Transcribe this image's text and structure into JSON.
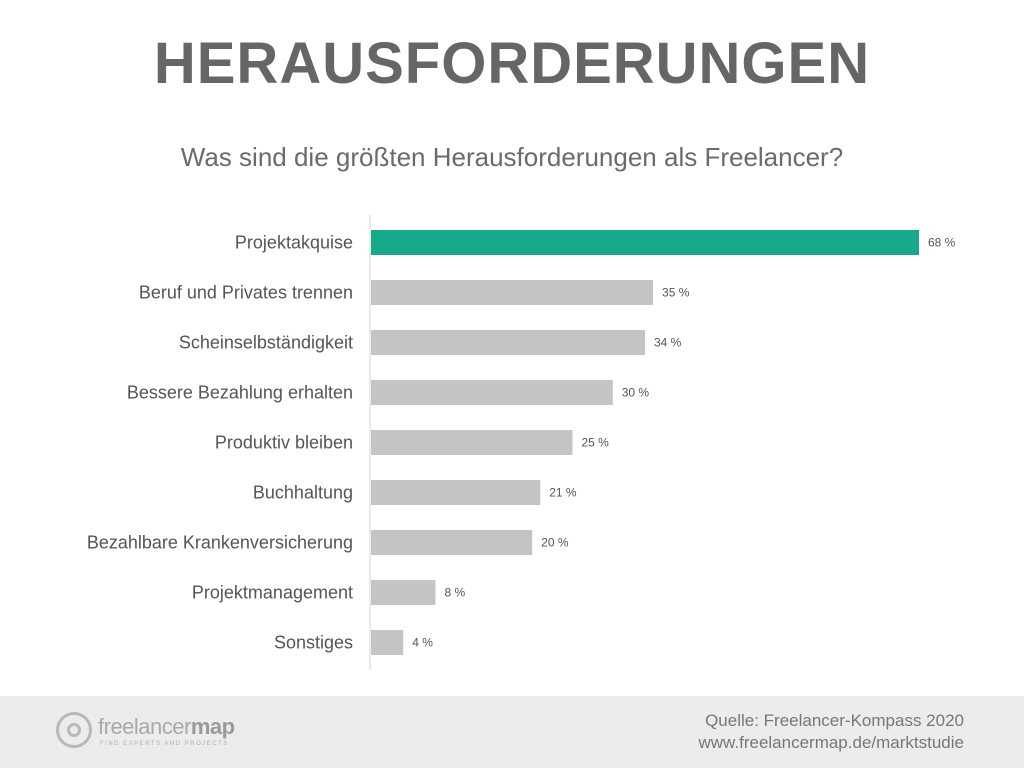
{
  "title": "HERAUSFORDERUNGEN",
  "subtitle": "Was sind die größten Herausforderungen als Freelancer?",
  "chart_data": {
    "type": "bar",
    "orientation": "horizontal",
    "categories": [
      "Projektakquise",
      "Beruf und Privates trennen",
      "Scheinselbständigkeit",
      "Bessere Bezahlung erhalten",
      "Produktiv bleiben",
      "Buchhaltung",
      "Bezahlbare Krankenversicherung",
      "Projektmanagement",
      "Sonstiges"
    ],
    "values": [
      68,
      35,
      34,
      30,
      25,
      21,
      20,
      8,
      4
    ],
    "value_labels": [
      "68 %",
      "35 %",
      "34 %",
      "30 %",
      "25 %",
      "21 %",
      "20 %",
      "8 %",
      "4 %"
    ],
    "unit": "%",
    "xlim": [
      0,
      68
    ],
    "highlight_color": "#17a98a",
    "bar_color": "#c4c4c4",
    "axis_color": "#d6d6d6",
    "label_color": "#555555",
    "value_color": "#555555"
  },
  "footer": {
    "logo_light": "freelancer",
    "logo_bold": "map",
    "logo_tagline": "FIND EXPERTS AND PROJECTS",
    "source_line1": "Quelle: Freelancer-Kompass 2020",
    "source_line2": "www.freelancermap.de/marktstudie"
  }
}
